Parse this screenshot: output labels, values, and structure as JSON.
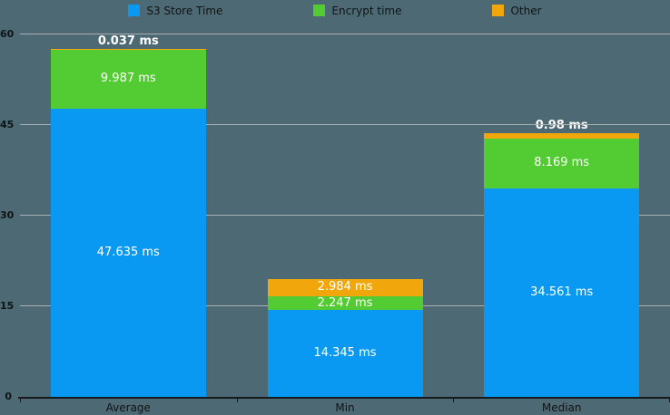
{
  "chart_data": {
    "type": "bar",
    "stacked": true,
    "title": "",
    "categories": [
      "Average",
      "Min",
      "Median"
    ],
    "series": [
      {
        "name": "S3 Store Time",
        "color": "#0a99f2",
        "values": [
          47.635,
          14.345,
          34.561
        ],
        "labels": [
          "47.635 ms",
          "14.345 ms",
          "34.561 ms"
        ]
      },
      {
        "name": "Encrypt time",
        "color": "#53cb32",
        "values": [
          9.987,
          2.247,
          8.169
        ],
        "labels": [
          "9.987 ms",
          "2.247 ms",
          "8.169 ms"
        ]
      },
      {
        "name": "Other",
        "color": "#f1a70b",
        "values": [
          0.037,
          2.984,
          0.98
        ],
        "labels": [
          "0.037 ms",
          "2.984 ms",
          "0.98 ms"
        ]
      }
    ],
    "ylim": [
      0,
      60
    ],
    "yticks": [
      0,
      15,
      30,
      45,
      60
    ],
    "unit": "ms",
    "grid": true,
    "legend_position": "top"
  },
  "colors": {
    "background": "#4d6973",
    "gridline": "#a8b0b2",
    "axis": "#16191b",
    "tick_text": "#101417",
    "value_text": "#ffffff"
  }
}
